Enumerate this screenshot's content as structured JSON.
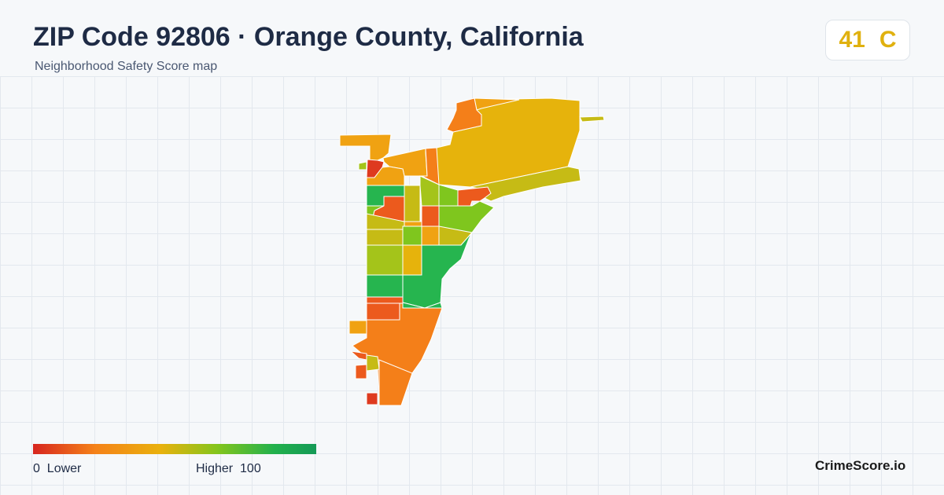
{
  "header": {
    "title": "ZIP Code 92806 · Orange County, California",
    "subtitle": "Neighborhood Safety Score map"
  },
  "score": {
    "value": "41",
    "grade": "C",
    "color": "#e0b10f"
  },
  "legend": {
    "min_value": "0",
    "min_label": "Lower",
    "max_label": "Higher",
    "max_value": "100",
    "colors": [
      "#d7261f",
      "#f58219",
      "#e9b10d",
      "#84c51c",
      "#22b14c",
      "#159a57"
    ]
  },
  "brand": "CrimeScore.io",
  "map": {
    "palette": {
      "red": "#de3a1f",
      "red_orange": "#ec5a1d",
      "orange": "#f47f19",
      "orange_yellow": "#f0a212",
      "yellow": "#e6b30c",
      "olive": "#c6bb15",
      "yellow_green": "#a4c41a",
      "light_green": "#7fc61e",
      "green": "#26b54f",
      "dark_green": "#1fae55"
    }
  }
}
